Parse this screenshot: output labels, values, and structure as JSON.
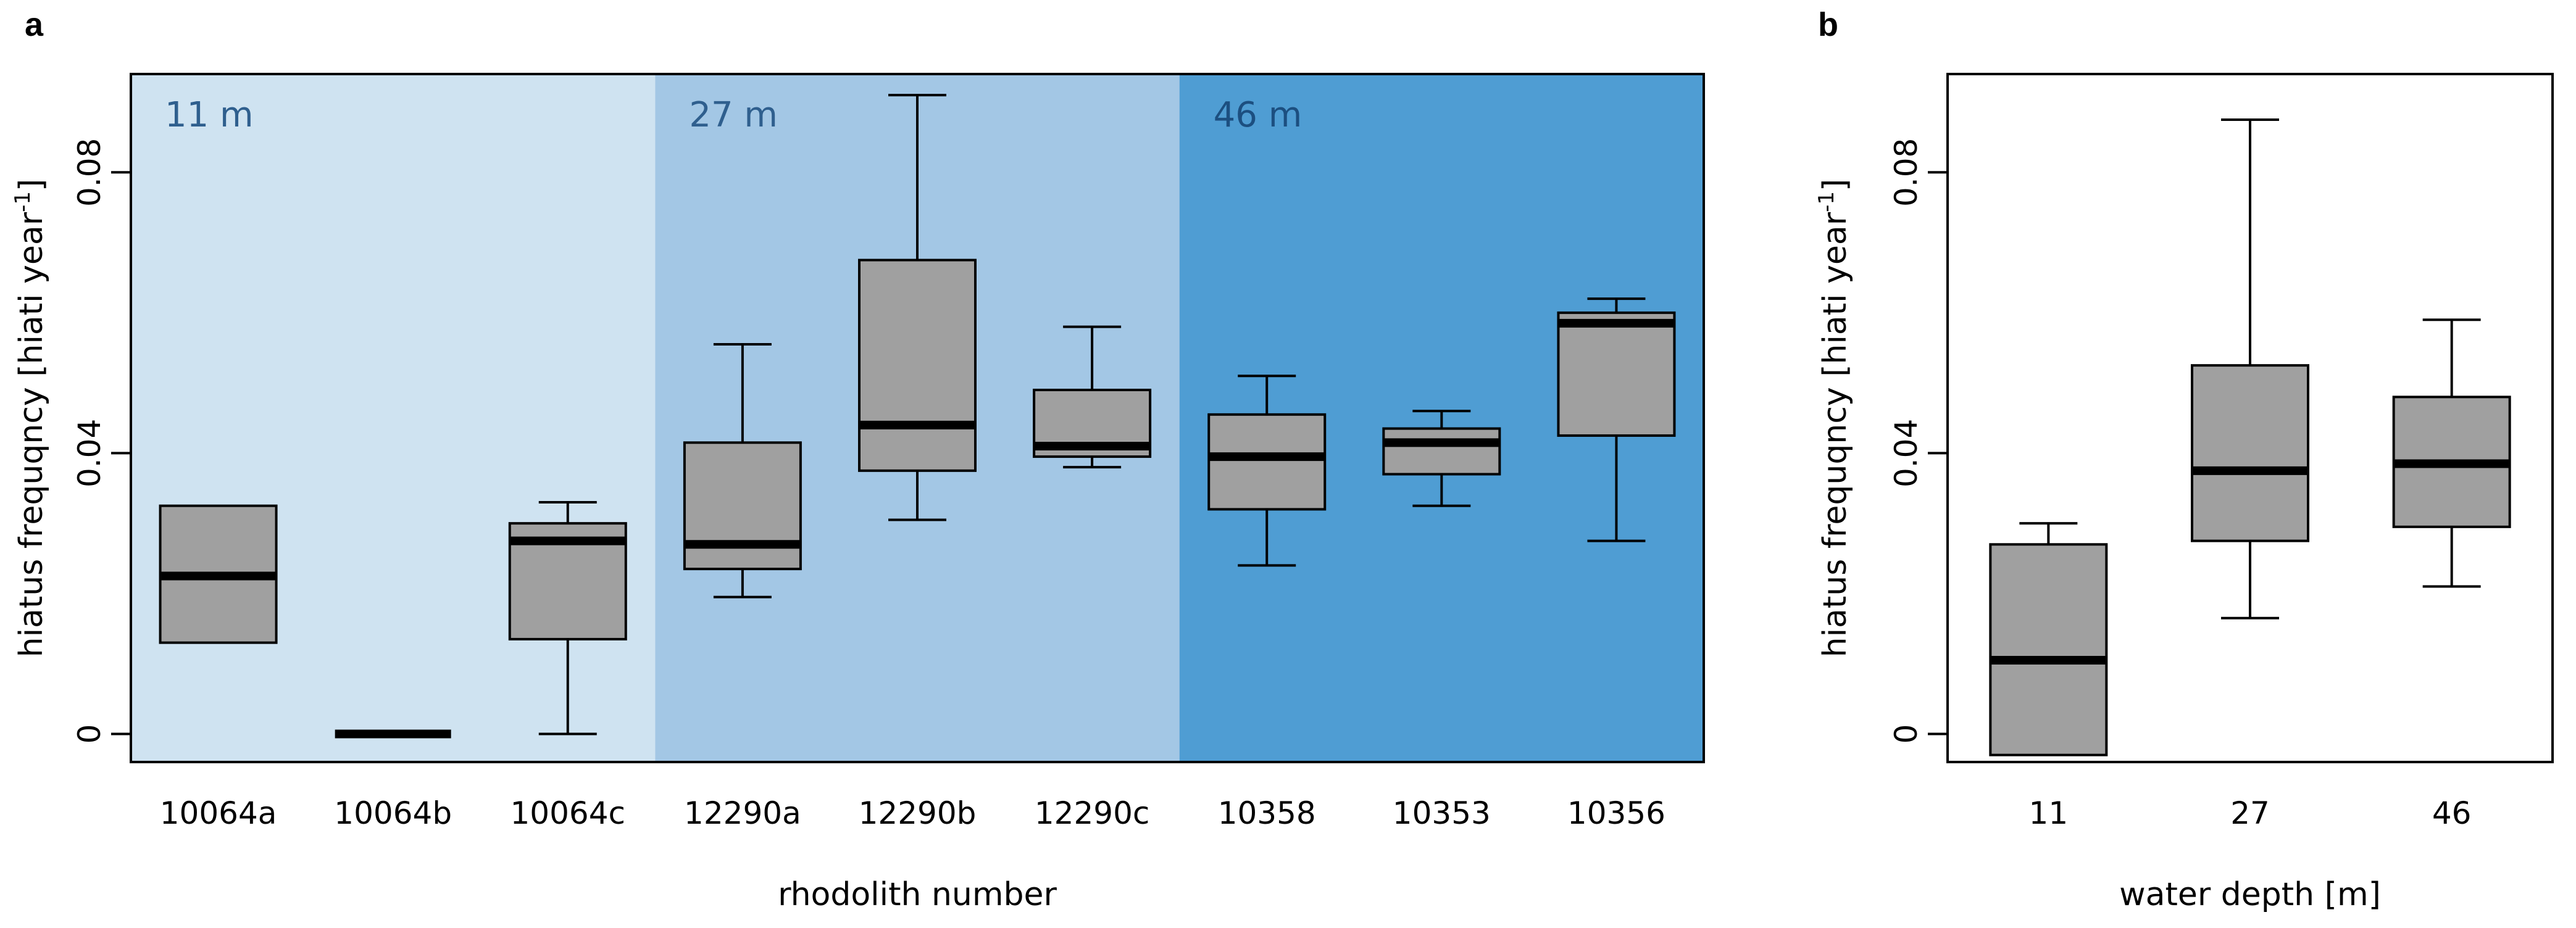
{
  "chart_data": [
    {
      "panel": "a",
      "type": "box",
      "xlabel": "rhodolith number",
      "ylabel": "hiatus frequqncy [hiati year",
      "ylabel_superscript": "-1",
      "ylabel_close": "]",
      "ylim": [
        -0.004,
        0.094
      ],
      "yticks": [
        0,
        0.04,
        0.08
      ],
      "ytick_labels": [
        "0",
        "0.04",
        "0.08"
      ],
      "grid": false,
      "depth_bands": [
        {
          "label": "11 m",
          "from_index": 0,
          "to_index": 2,
          "color": "#cfe3f1",
          "text_color": "#2f5f8e"
        },
        {
          "label": "27 m",
          "from_index": 3,
          "to_index": 5,
          "color": "#a3c7e5",
          "text_color": "#2f5f8e"
        },
        {
          "label": "46 m",
          "from_index": 6,
          "to_index": 8,
          "color": "#4f9dd3",
          "text_color": "#1c4f80"
        }
      ],
      "categories": [
        "10064a",
        "10064b",
        "10064c",
        "12290a",
        "12290b",
        "12290c",
        "10358",
        "10353",
        "10356"
      ],
      "boxes": [
        {
          "category": "10064a",
          "min": 0.013,
          "q1": 0.013,
          "median": 0.0225,
          "q3": 0.0325,
          "max": 0.0325
        },
        {
          "category": "10064b",
          "min": 0,
          "q1": 0,
          "median": 0,
          "q3": 0,
          "max": 0
        },
        {
          "category": "10064c",
          "min": 0,
          "q1": 0.0135,
          "median": 0.0275,
          "q3": 0.03,
          "max": 0.033
        },
        {
          "category": "12290a",
          "min": 0.0195,
          "q1": 0.0235,
          "median": 0.027,
          "q3": 0.0415,
          "max": 0.0555
        },
        {
          "category": "12290b",
          "min": 0.0305,
          "q1": 0.0375,
          "median": 0.044,
          "q3": 0.0675,
          "max": 0.091
        },
        {
          "category": "12290c",
          "min": 0.038,
          "q1": 0.0395,
          "median": 0.041,
          "q3": 0.049,
          "max": 0.058
        },
        {
          "category": "10358",
          "min": 0.024,
          "q1": 0.032,
          "median": 0.0395,
          "q3": 0.0455,
          "max": 0.051
        },
        {
          "category": "10353",
          "min": 0.0325,
          "q1": 0.037,
          "median": 0.0415,
          "q3": 0.0435,
          "max": 0.046
        },
        {
          "category": "10356",
          "min": 0.0275,
          "q1": 0.0425,
          "median": 0.0585,
          "q3": 0.06,
          "max": 0.062
        }
      ]
    },
    {
      "panel": "b",
      "type": "box",
      "xlabel": "water depth [m]",
      "ylabel": "hiatus frequqncy [hiati year",
      "ylabel_superscript": "-1",
      "ylabel_close": "]",
      "ylim": [
        -0.004,
        0.094
      ],
      "yticks": [
        0,
        0.04,
        0.08
      ],
      "ytick_labels": [
        "0",
        "0.04",
        "0.08"
      ],
      "grid": false,
      "categories": [
        "11",
        "27",
        "46"
      ],
      "boxes": [
        {
          "category": "11",
          "min": -0.003,
          "q1": -0.003,
          "median": 0.0105,
          "q3": 0.027,
          "max": 0.03
        },
        {
          "category": "27",
          "min": 0.0165,
          "q1": 0.0275,
          "median": 0.0375,
          "q3": 0.0525,
          "max": 0.0875
        },
        {
          "category": "46",
          "min": 0.021,
          "q1": 0.0295,
          "median": 0.0385,
          "q3": 0.048,
          "max": 0.059
        }
      ]
    }
  ],
  "style": {
    "box_fill": "#a0a0a0",
    "box_stroke": "#000000",
    "median_color": "#000000"
  }
}
